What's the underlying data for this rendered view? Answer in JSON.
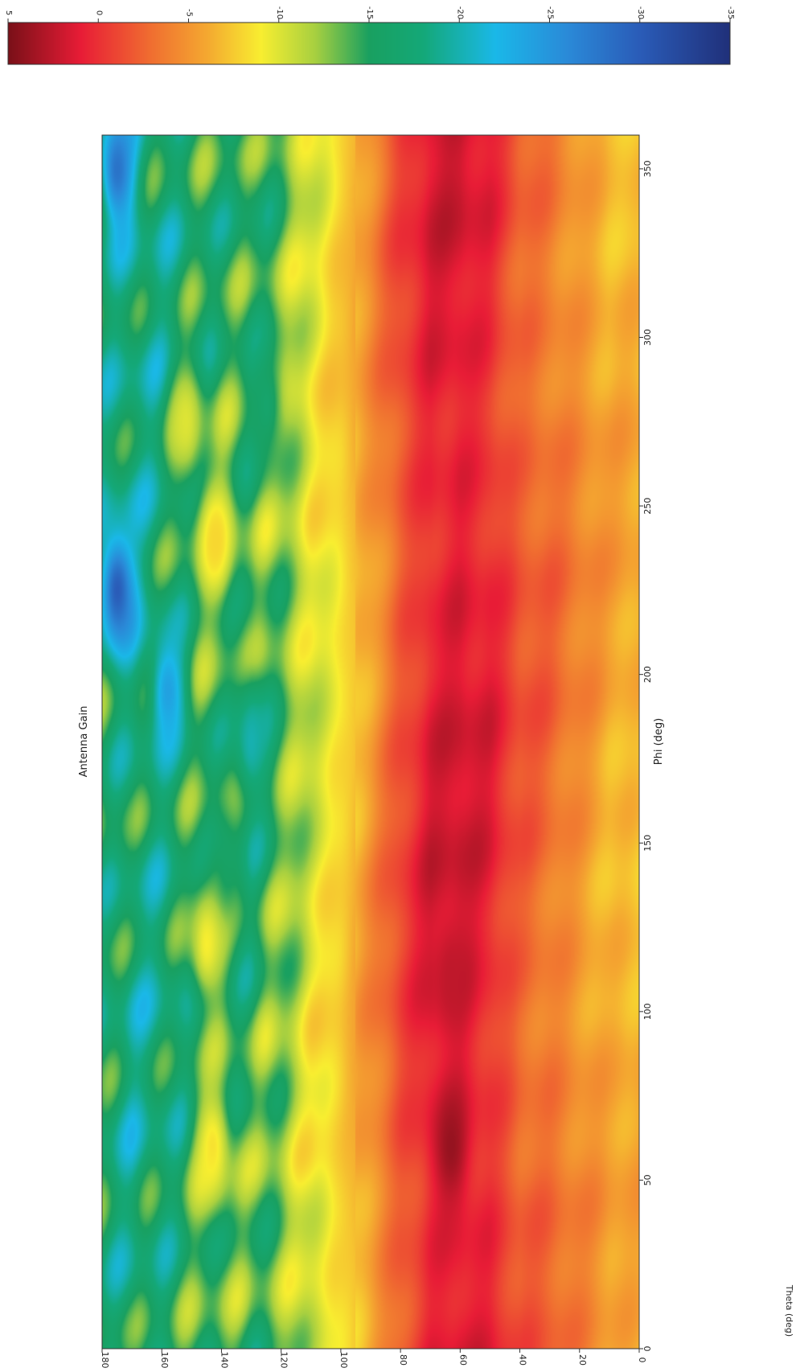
{
  "chart_data": {
    "type": "heatmap",
    "title": "Antenna Gain",
    "xlabel": "Phi (deg)",
    "ylabel": "Theta (deg)",
    "xlim": [
      0,
      360
    ],
    "ylim": [
      0,
      180
    ],
    "x_ticks": [
      0,
      50,
      100,
      150,
      200,
      250,
      300,
      350
    ],
    "y_ticks": [
      0,
      20,
      40,
      60,
      80,
      100,
      120,
      140,
      160,
      180
    ],
    "colorbar": {
      "range": [
        5,
        -35
      ],
      "ticks": [
        5,
        0,
        -5,
        -10,
        -15,
        -20,
        -25,
        -30,
        -35
      ],
      "colors": [
        {
          "value": 5,
          "color": "#7a1018"
        },
        {
          "value": 1,
          "color": "#e81c36"
        },
        {
          "value": -3,
          "color": "#f07030"
        },
        {
          "value": -6,
          "color": "#f4a830"
        },
        {
          "value": -9,
          "color": "#f8ee30"
        },
        {
          "value": -12,
          "color": "#a8d040"
        },
        {
          "value": -15,
          "color": "#19a060"
        },
        {
          "value": -18,
          "color": "#14a878"
        },
        {
          "value": -22,
          "color": "#1ab8e8"
        },
        {
          "value": -26,
          "color": "#2a8ad8"
        },
        {
          "value": -30,
          "color": "#2a5cb8"
        },
        {
          "value": -35,
          "color": "#20307a"
        }
      ]
    },
    "theta_profile_db": [
      {
        "theta": 0,
        "gain": -6.5
      },
      {
        "theta": 10,
        "gain": -6.0
      },
      {
        "theta": 20,
        "gain": -4.5
      },
      {
        "theta": 30,
        "gain": -3.0
      },
      {
        "theta": 40,
        "gain": -2.0
      },
      {
        "theta": 50,
        "gain": 0.5
      },
      {
        "theta": 60,
        "gain": 1.5
      },
      {
        "theta": 70,
        "gain": 1.0
      },
      {
        "theta": 80,
        "gain": -1.5
      },
      {
        "theta": 90,
        "gain": -5.0
      },
      {
        "theta": 100,
        "gain": -8.0
      },
      {
        "theta": 110,
        "gain": -10.0
      },
      {
        "theta": 120,
        "gain": -13.0
      },
      {
        "theta": 130,
        "gain": -15.0
      },
      {
        "theta": 140,
        "gain": -14.5
      },
      {
        "theta": 150,
        "gain": -15.5
      },
      {
        "theta": 160,
        "gain": -17.0
      },
      {
        "theta": 170,
        "gain": -17.5
      },
      {
        "theta": 180,
        "gain": -16.0
      }
    ],
    "features": [
      {
        "phi": 60,
        "theta": 63,
        "gain": 4.0
      },
      {
        "phi": 110,
        "theta": 63,
        "gain": 2.5
      },
      {
        "phi": 225,
        "theta": 175,
        "gain": -30.0
      },
      {
        "phi": 350,
        "theta": 175,
        "gain": -28.0
      },
      {
        "phi": 195,
        "theta": 158,
        "gain": -24.0
      },
      {
        "phi": 140,
        "theta": 140,
        "gain": -16.0
      },
      {
        "phi": 275,
        "theta": 152,
        "gain": -10.0
      },
      {
        "phi": 240,
        "theta": 142,
        "gain": -8.0
      },
      {
        "phi": 60,
        "theta": 143,
        "gain": -8.5
      },
      {
        "phi": 120,
        "theta": 145,
        "gain": -9.0
      },
      {
        "phi": 280,
        "theta": 125,
        "gain": -16.5
      },
      {
        "phi": 180,
        "theta": 130,
        "gain": -20.0
      }
    ]
  }
}
